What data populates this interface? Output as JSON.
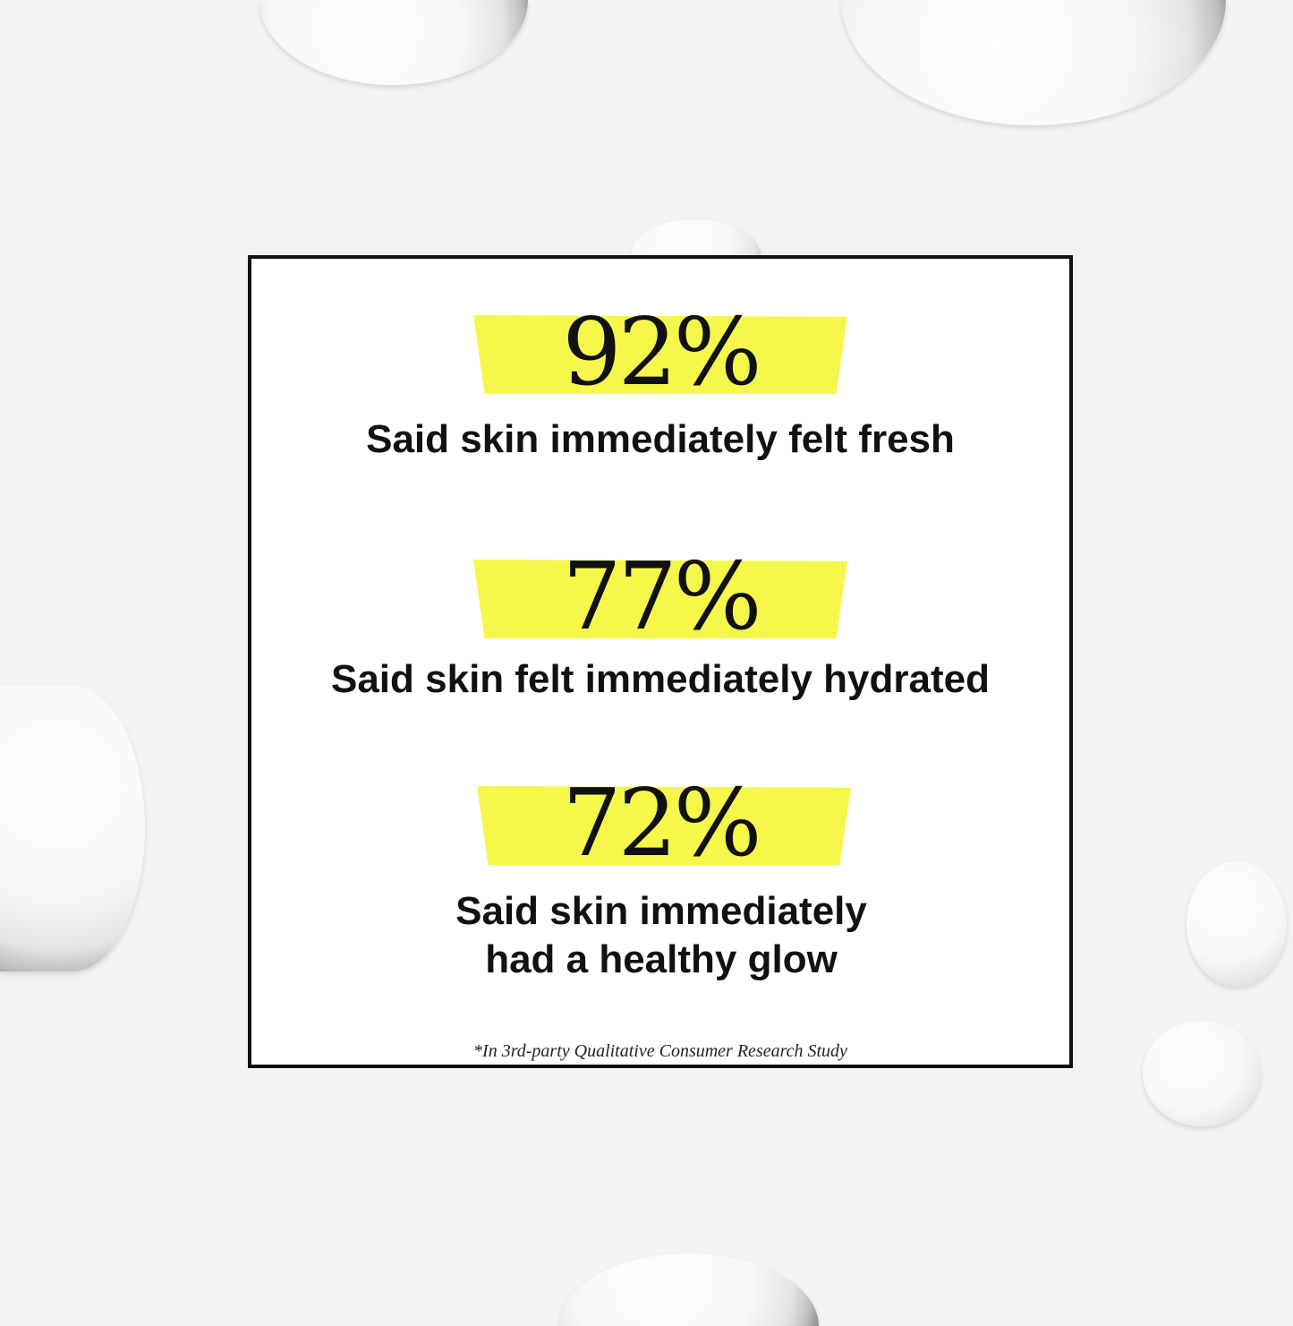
{
  "stats": [
    {
      "value": "92%",
      "caption": "Said skin immediately felt fresh"
    },
    {
      "value": "77%",
      "caption": "Said skin felt immediately hydrated"
    },
    {
      "value": "72%",
      "caption": "Said skin immediately had a healthy glow"
    }
  ],
  "footnote": "*In 3rd-party Qualitative Consumer Research Study",
  "colors": {
    "highlight": "#f5f84a",
    "border": "#111111",
    "background": "#f3f3f3"
  }
}
